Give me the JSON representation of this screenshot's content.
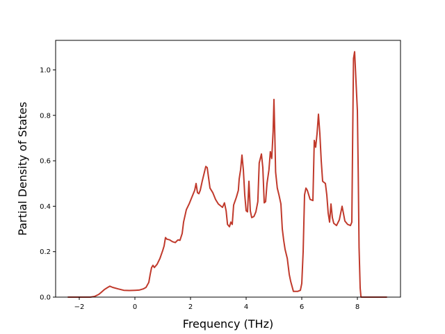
{
  "chart_data": {
    "type": "line",
    "title": "",
    "xlabel": "Frequency (THz)",
    "ylabel": "Partial Density of States",
    "xlim": [
      -2.85,
      9.55
    ],
    "ylim": [
      0.0,
      1.13
    ],
    "xticks": [
      -2,
      0,
      2,
      4,
      6,
      8
    ],
    "xtick_labels": [
      "−2",
      "0",
      "2",
      "4",
      "6",
      "8"
    ],
    "yticks": [
      0.0,
      0.2,
      0.4,
      0.6,
      0.8,
      1.0
    ],
    "ytick_labels": [
      "0.0",
      "0.2",
      "0.4",
      "0.6",
      "0.8",
      "1.0"
    ],
    "grid": false,
    "series": [
      {
        "color": "#c0392b",
        "points": [
          [
            -2.4,
            0.0
          ],
          [
            -2.0,
            0.0
          ],
          [
            -1.6,
            0.0
          ],
          [
            -1.45,
            0.003
          ],
          [
            -1.3,
            0.012
          ],
          [
            -1.2,
            0.022
          ],
          [
            -1.1,
            0.033
          ],
          [
            -1.0,
            0.041
          ],
          [
            -0.9,
            0.048
          ],
          [
            -0.8,
            0.043
          ],
          [
            -0.6,
            0.036
          ],
          [
            -0.4,
            0.03
          ],
          [
            -0.2,
            0.029
          ],
          [
            0.0,
            0.03
          ],
          [
            0.15,
            0.031
          ],
          [
            0.3,
            0.036
          ],
          [
            0.4,
            0.043
          ],
          [
            0.5,
            0.065
          ],
          [
            0.55,
            0.1
          ],
          [
            0.6,
            0.13
          ],
          [
            0.65,
            0.14
          ],
          [
            0.7,
            0.13
          ],
          [
            0.8,
            0.145
          ],
          [
            0.9,
            0.17
          ],
          [
            1.0,
            0.205
          ],
          [
            1.05,
            0.225
          ],
          [
            1.1,
            0.262
          ],
          [
            1.15,
            0.255
          ],
          [
            1.25,
            0.252
          ],
          [
            1.35,
            0.244
          ],
          [
            1.45,
            0.24
          ],
          [
            1.55,
            0.252
          ],
          [
            1.62,
            0.25
          ],
          [
            1.7,
            0.28
          ],
          [
            1.75,
            0.33
          ],
          [
            1.85,
            0.385
          ],
          [
            1.95,
            0.41
          ],
          [
            2.05,
            0.44
          ],
          [
            2.15,
            0.47
          ],
          [
            2.2,
            0.5
          ],
          [
            2.25,
            0.46
          ],
          [
            2.3,
            0.455
          ],
          [
            2.35,
            0.47
          ],
          [
            2.42,
            0.51
          ],
          [
            2.5,
            0.55
          ],
          [
            2.55,
            0.575
          ],
          [
            2.6,
            0.57
          ],
          [
            2.7,
            0.48
          ],
          [
            2.8,
            0.46
          ],
          [
            2.9,
            0.43
          ],
          [
            3.0,
            0.41
          ],
          [
            3.1,
            0.4
          ],
          [
            3.15,
            0.395
          ],
          [
            3.22,
            0.415
          ],
          [
            3.28,
            0.38
          ],
          [
            3.33,
            0.32
          ],
          [
            3.4,
            0.31
          ],
          [
            3.45,
            0.33
          ],
          [
            3.5,
            0.32
          ],
          [
            3.55,
            0.405
          ],
          [
            3.65,
            0.44
          ],
          [
            3.72,
            0.47
          ],
          [
            3.75,
            0.52
          ],
          [
            3.8,
            0.56
          ],
          [
            3.85,
            0.625
          ],
          [
            3.9,
            0.56
          ],
          [
            3.95,
            0.45
          ],
          [
            4.0,
            0.38
          ],
          [
            4.05,
            0.375
          ],
          [
            4.1,
            0.51
          ],
          [
            4.15,
            0.38
          ],
          [
            4.2,
            0.35
          ],
          [
            4.28,
            0.355
          ],
          [
            4.35,
            0.375
          ],
          [
            4.42,
            0.42
          ],
          [
            4.47,
            0.59
          ],
          [
            4.55,
            0.63
          ],
          [
            4.6,
            0.57
          ],
          [
            4.65,
            0.415
          ],
          [
            4.7,
            0.42
          ],
          [
            4.75,
            0.5
          ],
          [
            4.82,
            0.56
          ],
          [
            4.87,
            0.64
          ],
          [
            4.92,
            0.61
          ],
          [
            4.97,
            0.73
          ],
          [
            5.0,
            0.87
          ],
          [
            5.03,
            0.72
          ],
          [
            5.06,
            0.55
          ],
          [
            5.12,
            0.48
          ],
          [
            5.18,
            0.45
          ],
          [
            5.25,
            0.41
          ],
          [
            5.3,
            0.3
          ],
          [
            5.35,
            0.25
          ],
          [
            5.4,
            0.21
          ],
          [
            5.48,
            0.17
          ],
          [
            5.55,
            0.1
          ],
          [
            5.6,
            0.07
          ],
          [
            5.7,
            0.025
          ],
          [
            5.85,
            0.025
          ],
          [
            5.95,
            0.03
          ],
          [
            6.0,
            0.06
          ],
          [
            6.05,
            0.2
          ],
          [
            6.1,
            0.45
          ],
          [
            6.15,
            0.48
          ],
          [
            6.2,
            0.47
          ],
          [
            6.3,
            0.43
          ],
          [
            6.4,
            0.425
          ],
          [
            6.45,
            0.69
          ],
          [
            6.5,
            0.66
          ],
          [
            6.55,
            0.72
          ],
          [
            6.6,
            0.805
          ],
          [
            6.65,
            0.72
          ],
          [
            6.7,
            0.6
          ],
          [
            6.75,
            0.51
          ],
          [
            6.85,
            0.5
          ],
          [
            6.9,
            0.45
          ],
          [
            6.95,
            0.37
          ],
          [
            7.0,
            0.33
          ],
          [
            7.05,
            0.41
          ],
          [
            7.1,
            0.35
          ],
          [
            7.15,
            0.325
          ],
          [
            7.25,
            0.315
          ],
          [
            7.35,
            0.34
          ],
          [
            7.45,
            0.4
          ],
          [
            7.55,
            0.335
          ],
          [
            7.65,
            0.32
          ],
          [
            7.75,
            0.315
          ],
          [
            7.8,
            0.33
          ],
          [
            7.83,
            0.7
          ],
          [
            7.86,
            1.05
          ],
          [
            7.9,
            1.08
          ],
          [
            7.95,
            0.95
          ],
          [
            8.0,
            0.82
          ],
          [
            8.03,
            0.55
          ],
          [
            8.06,
            0.22
          ],
          [
            8.1,
            0.04
          ],
          [
            8.13,
            0.0
          ],
          [
            8.5,
            0.0
          ],
          [
            9.05,
            0.0
          ]
        ]
      }
    ]
  }
}
